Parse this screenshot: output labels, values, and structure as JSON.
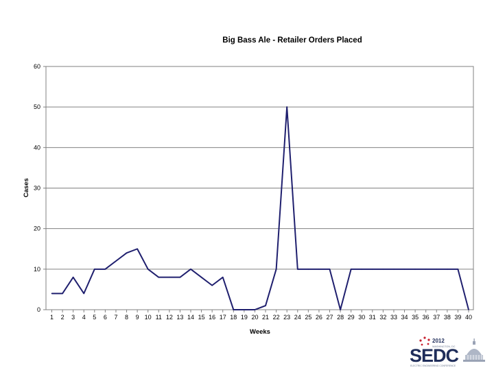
{
  "chart_data": {
    "type": "line",
    "title": "Big Bass Ale - Retailer Orders Placed",
    "xlabel": "Weeks",
    "ylabel": "Cases",
    "x": [
      1,
      2,
      3,
      4,
      5,
      6,
      7,
      8,
      9,
      10,
      11,
      12,
      13,
      14,
      15,
      16,
      17,
      18,
      19,
      20,
      21,
      22,
      23,
      24,
      25,
      26,
      27,
      28,
      29,
      30,
      31,
      32,
      33,
      34,
      35,
      36,
      37,
      38,
      39,
      40
    ],
    "x_tick_labels": [
      "1",
      "2",
      "3",
      "4",
      "5",
      "6",
      "7",
      "8",
      "9",
      "10",
      "11",
      "12",
      "13",
      "14",
      "15",
      "16",
      "17",
      "18",
      "19",
      "20",
      "21",
      "22",
      "23",
      "24",
      "25",
      "26",
      "27",
      "28",
      "29",
      "30",
      "31",
      "32",
      "33",
      "34",
      "35",
      "36",
      "37",
      "38",
      "39",
      "40"
    ],
    "ylim": [
      0,
      60
    ],
    "y_ticks": [
      0,
      10,
      20,
      30,
      40,
      50,
      60
    ],
    "y_tick_labels": [
      "0",
      "10",
      "20",
      "30",
      "40",
      "50",
      "60"
    ],
    "series": [
      {
        "values": [
          4,
          4,
          8,
          4,
          10,
          10,
          12,
          14,
          15,
          10,
          8,
          8,
          8,
          10,
          8,
          6,
          8,
          0,
          0,
          0,
          1,
          10,
          50,
          10,
          10,
          10,
          10,
          0,
          10,
          10,
          10,
          10,
          10,
          10,
          10,
          10,
          10,
          10,
          10,
          0
        ]
      }
    ],
    "grid": "horizontal",
    "legend": "none",
    "colors": {
      "line": "#1f1f6e",
      "grid": "#808080",
      "axis": "#808080"
    }
  },
  "logo": {
    "year": "2012",
    "city": "WASHINGTON, DC",
    "name": "SEDC",
    "tagline": "ELECTRIC ENGINEERING CONFERENCE"
  }
}
